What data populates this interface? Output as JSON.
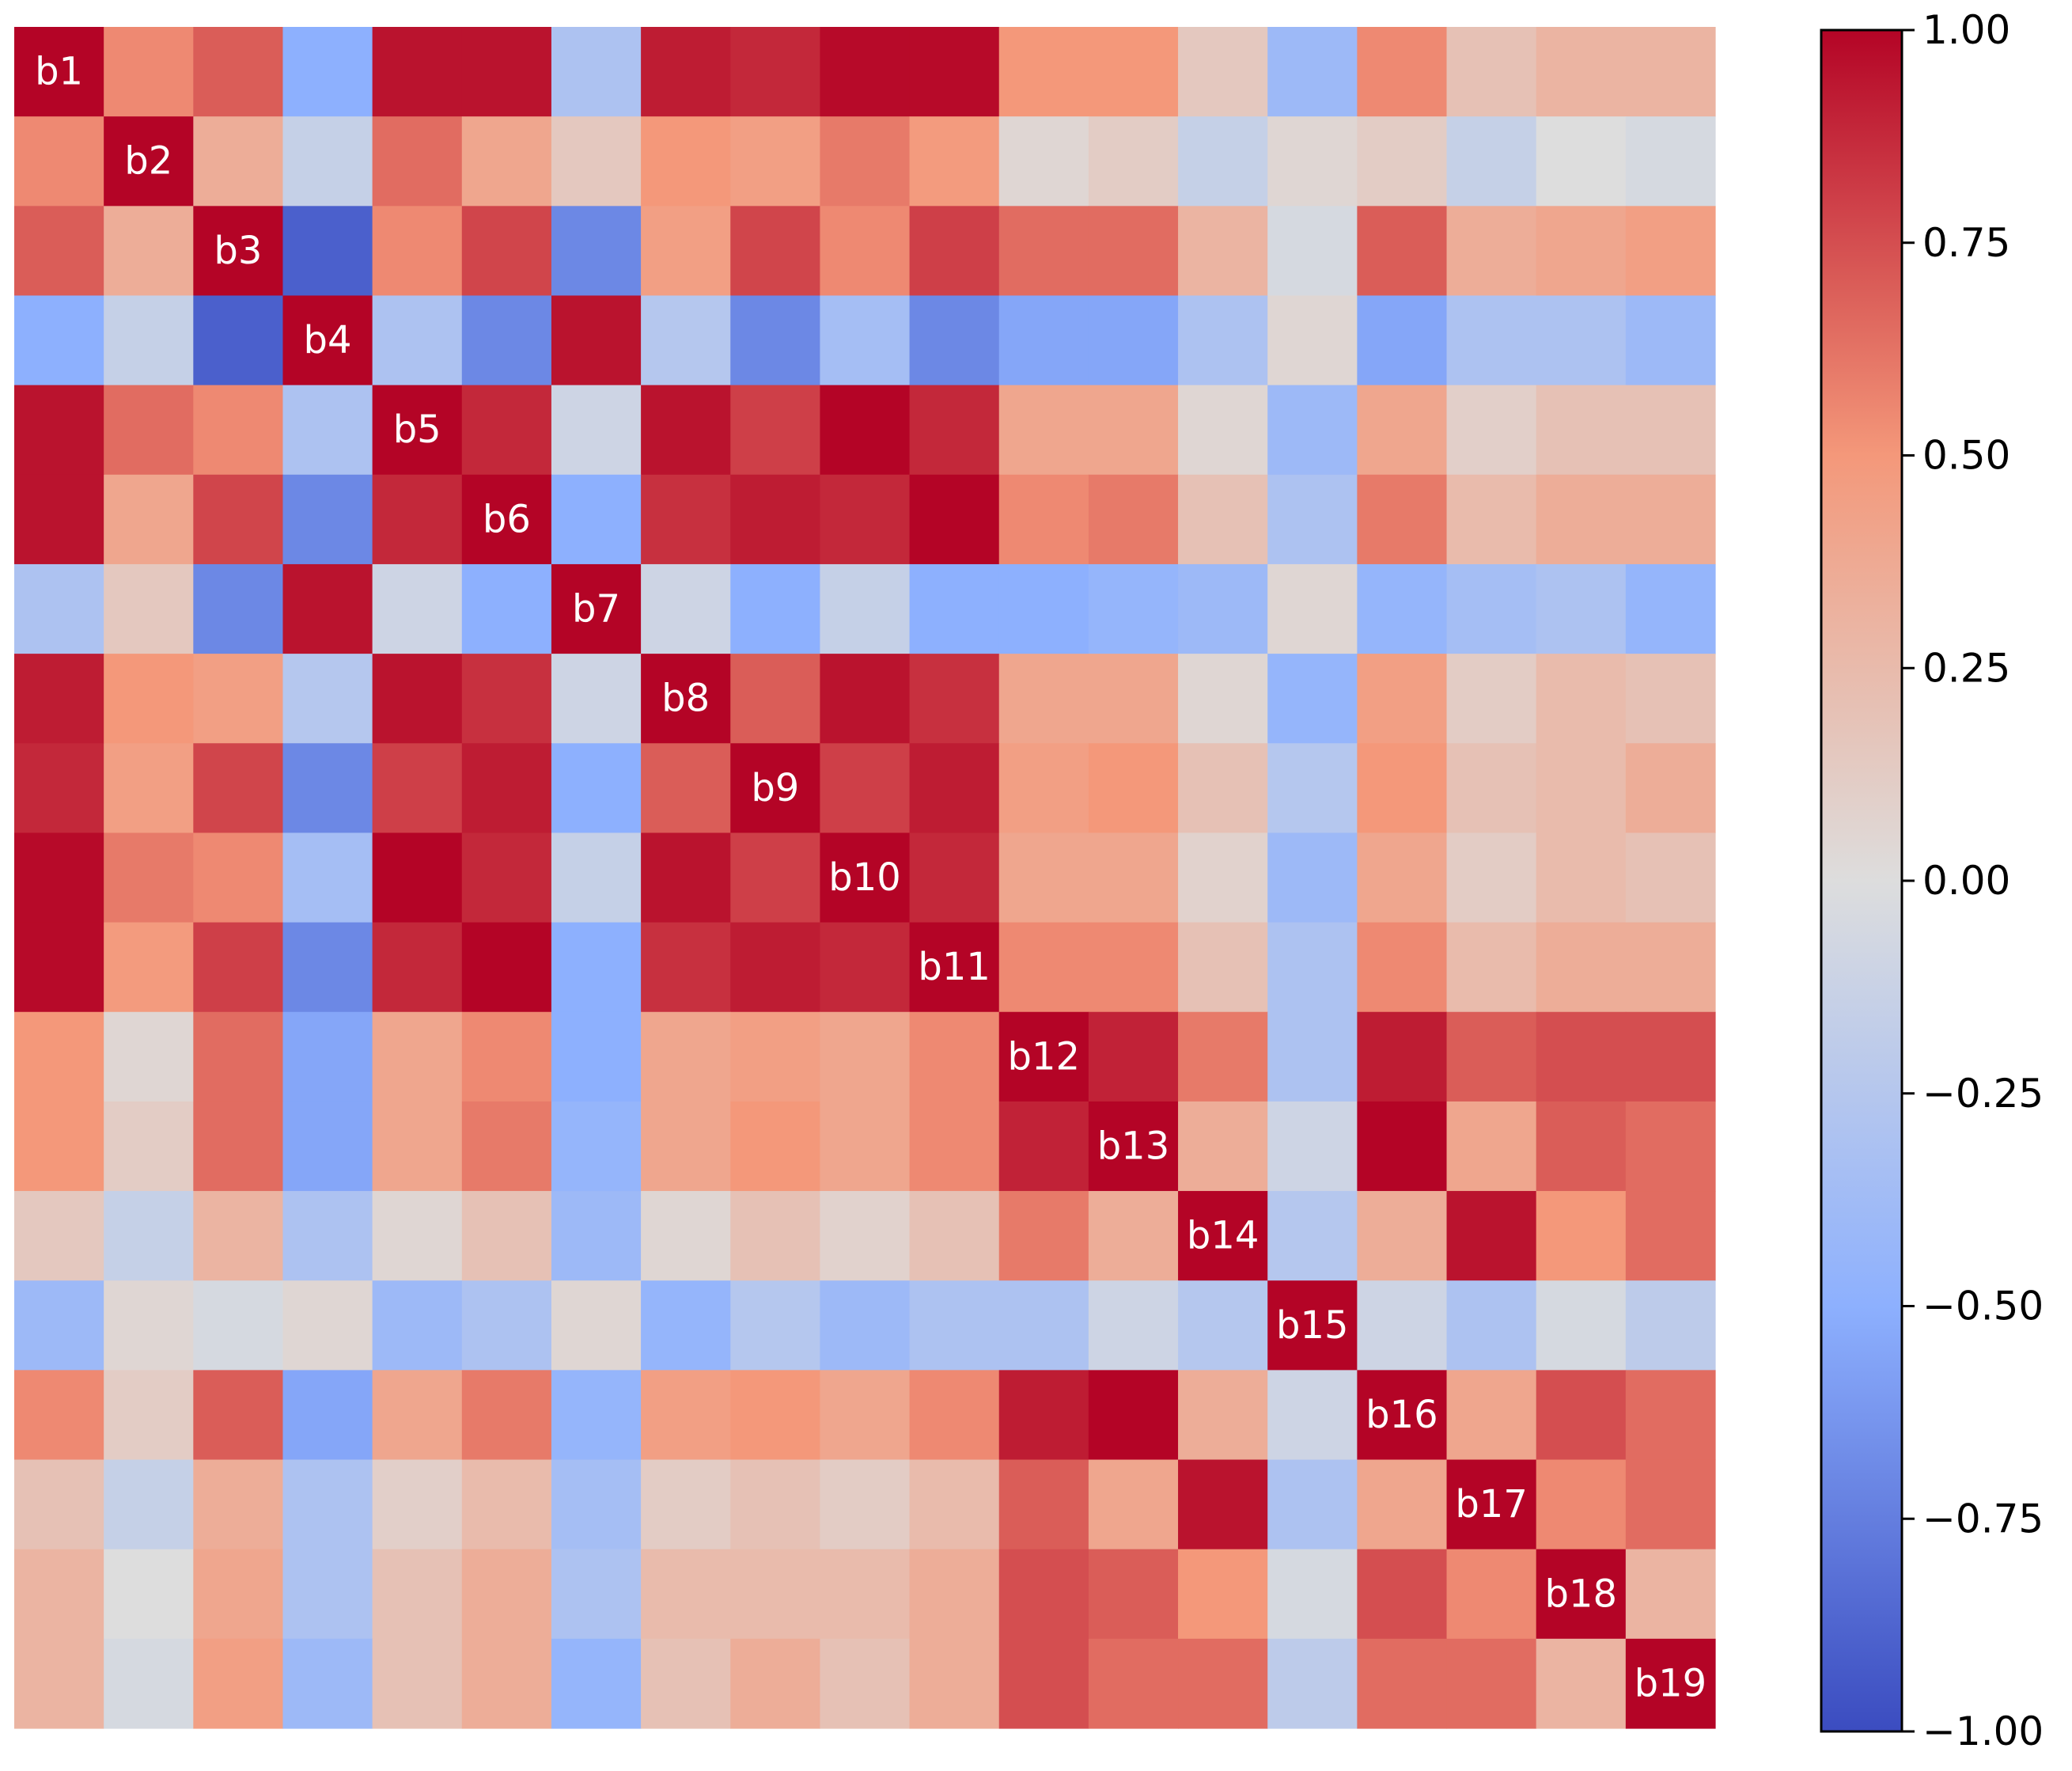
{
  "chart_data": {
    "type": "heatmap",
    "title": "",
    "xlabel": "",
    "ylabel": "",
    "labels": [
      "b1",
      "b2",
      "b3",
      "b4",
      "b5",
      "b6",
      "b7",
      "b8",
      "b9",
      "b10",
      "b11",
      "b12",
      "b13",
      "b14",
      "b15",
      "b16",
      "b17",
      "b18",
      "b19"
    ],
    "colormap": "coolwarm",
    "vmin": -1.0,
    "vmax": 1.0,
    "colorbar_ticks": [
      1.0,
      0.75,
      0.5,
      0.25,
      0.0,
      -0.25,
      -0.5,
      -0.75,
      -1.0
    ],
    "colorbar_tick_labels": [
      "1.00",
      "0.75",
      "0.50",
      "0.25",
      "0.00",
      "−0.25",
      "−0.50",
      "−0.75",
      "−1.00"
    ],
    "matrix": [
      [
        1.0,
        0.55,
        0.7,
        -0.5,
        0.95,
        0.95,
        -0.3,
        0.92,
        0.88,
        0.98,
        0.98,
        0.5,
        0.5,
        0.15,
        -0.4,
        0.55,
        0.2,
        0.3,
        0.3
      ],
      [
        0.55,
        1.0,
        0.35,
        -0.15,
        0.65,
        0.4,
        0.15,
        0.5,
        0.45,
        0.6,
        0.48,
        0.05,
        0.12,
        -0.15,
        0.05,
        0.12,
        -0.15,
        0.0,
        -0.05
      ],
      [
        0.7,
        0.35,
        1.0,
        -0.9,
        0.55,
        0.78,
        -0.7,
        0.45,
        0.78,
        0.55,
        0.8,
        0.65,
        0.65,
        0.3,
        -0.05,
        0.7,
        0.35,
        0.4,
        0.45
      ],
      [
        -0.5,
        -0.15,
        -0.9,
        1.0,
        -0.3,
        -0.7,
        0.95,
        -0.25,
        -0.7,
        -0.35,
        -0.7,
        -0.55,
        -0.55,
        -0.3,
        0.05,
        -0.55,
        -0.3,
        -0.3,
        -0.4
      ],
      [
        0.95,
        0.65,
        0.55,
        -0.3,
        1.0,
        0.88,
        -0.1,
        0.95,
        0.8,
        1.0,
        0.88,
        0.4,
        0.4,
        0.05,
        -0.4,
        0.4,
        0.1,
        0.2,
        0.2
      ],
      [
        0.95,
        0.4,
        0.78,
        -0.7,
        0.88,
        1.0,
        -0.5,
        0.85,
        0.92,
        0.88,
        1.0,
        0.55,
        0.6,
        0.2,
        -0.3,
        0.6,
        0.25,
        0.35,
        0.35
      ],
      [
        -0.3,
        0.15,
        -0.7,
        0.95,
        -0.1,
        -0.5,
        1.0,
        -0.1,
        -0.5,
        -0.15,
        -0.5,
        -0.5,
        -0.45,
        -0.4,
        0.05,
        -0.45,
        -0.35,
        -0.3,
        -0.45
      ],
      [
        0.92,
        0.5,
        0.45,
        -0.25,
        0.95,
        0.85,
        -0.1,
        1.0,
        0.7,
        0.95,
        0.85,
        0.4,
        0.4,
        0.05,
        -0.45,
        0.45,
        0.12,
        0.25,
        0.2
      ],
      [
        0.88,
        0.45,
        0.78,
        -0.7,
        0.8,
        0.92,
        -0.5,
        0.7,
        1.0,
        0.8,
        0.92,
        0.45,
        0.5,
        0.2,
        -0.25,
        0.5,
        0.2,
        0.25,
        0.35
      ],
      [
        0.98,
        0.6,
        0.55,
        -0.35,
        1.0,
        0.88,
        -0.15,
        0.95,
        0.8,
        1.0,
        0.88,
        0.4,
        0.4,
        0.08,
        -0.4,
        0.4,
        0.12,
        0.25,
        0.2
      ],
      [
        0.98,
        0.48,
        0.8,
        -0.7,
        0.88,
        1.0,
        -0.5,
        0.85,
        0.92,
        0.88,
        1.0,
        0.55,
        0.55,
        0.2,
        -0.3,
        0.55,
        0.25,
        0.35,
        0.35
      ],
      [
        0.5,
        0.05,
        0.65,
        -0.55,
        0.4,
        0.55,
        -0.5,
        0.4,
        0.45,
        0.4,
        0.55,
        1.0,
        0.9,
        0.6,
        -0.3,
        0.92,
        0.7,
        0.75,
        0.75
      ],
      [
        0.5,
        0.12,
        0.65,
        -0.55,
        0.4,
        0.6,
        -0.45,
        0.4,
        0.5,
        0.4,
        0.55,
        0.9,
        1.0,
        0.35,
        -0.1,
        1.0,
        0.4,
        0.7,
        0.65
      ],
      [
        0.15,
        -0.15,
        0.3,
        -0.3,
        0.05,
        0.2,
        -0.4,
        0.05,
        0.2,
        0.08,
        0.2,
        0.6,
        0.35,
        1.0,
        -0.25,
        0.35,
        0.95,
        0.5,
        0.65
      ],
      [
        -0.4,
        0.05,
        -0.05,
        0.05,
        -0.4,
        -0.3,
        0.05,
        -0.45,
        -0.25,
        -0.4,
        -0.3,
        -0.3,
        -0.1,
        -0.25,
        1.0,
        -0.1,
        -0.3,
        -0.05,
        -0.2
      ],
      [
        0.55,
        0.12,
        0.7,
        -0.55,
        0.4,
        0.6,
        -0.45,
        0.45,
        0.5,
        0.4,
        0.55,
        0.92,
        1.0,
        0.35,
        -0.1,
        1.0,
        0.4,
        0.75,
        0.65
      ],
      [
        0.2,
        -0.15,
        0.35,
        -0.3,
        0.1,
        0.25,
        -0.35,
        0.12,
        0.2,
        0.12,
        0.25,
        0.7,
        0.4,
        0.95,
        -0.3,
        0.4,
        1.0,
        0.55,
        0.65
      ],
      [
        0.3,
        0.0,
        0.4,
        -0.3,
        0.2,
        0.35,
        -0.3,
        0.25,
        0.25,
        0.25,
        0.35,
        0.75,
        0.7,
        0.5,
        -0.05,
        0.75,
        0.55,
        1.0,
        0.3
      ],
      [
        0.3,
        -0.05,
        0.45,
        -0.4,
        0.2,
        0.35,
        -0.45,
        0.2,
        0.35,
        0.2,
        0.35,
        0.75,
        0.65,
        0.65,
        -0.2,
        0.65,
        0.65,
        0.3,
        1.0
      ]
    ]
  }
}
